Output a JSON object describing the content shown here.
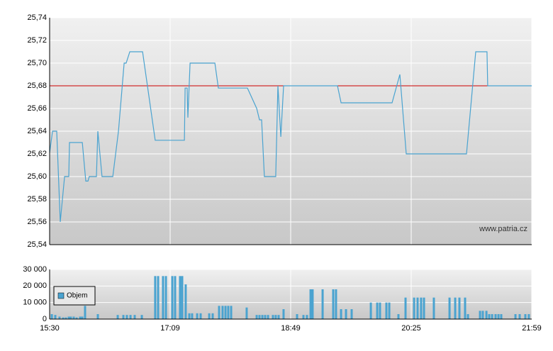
{
  "chart_data": [
    {
      "type": "line",
      "annotation": "www.patria.cz",
      "xlim": [
        0,
        4
      ],
      "ylim": [
        25.54,
        25.74
      ],
      "yticks": [
        {
          "value": 25.54,
          "label": "25,54"
        },
        {
          "value": 25.56,
          "label": "25,56"
        },
        {
          "value": 25.58,
          "label": "25,58"
        },
        {
          "value": 25.6,
          "label": "25,60"
        },
        {
          "value": 25.62,
          "label": "25,62"
        },
        {
          "value": 25.64,
          "label": "25,64"
        },
        {
          "value": 25.66,
          "label": "25,66"
        },
        {
          "value": 25.68,
          "label": "25,68"
        },
        {
          "value": 25.7,
          "label": "25,70"
        },
        {
          "value": 25.72,
          "label": "25,72"
        },
        {
          "value": 25.74,
          "label": "25,74"
        }
      ],
      "grid": true,
      "reference_line": {
        "value": 25.68,
        "color": "#cc0000"
      },
      "series": [
        {
          "color": "#4aa3d0",
          "x": [
            0,
            0.024,
            0.059,
            0.088,
            0.124,
            0.159,
            0.165,
            0.271,
            0.3,
            0.318,
            0.329,
            0.388,
            0.4,
            0.435,
            0.524,
            0.571,
            0.618,
            0.635,
            0.665,
            0.771,
            0.876,
            1.118,
            1.124,
            1.141,
            1.147,
            1.165,
            1.371,
            1.4,
            1.641,
            1.718,
            1.741,
            1.759,
            1.782,
            1.876,
            1.894,
            1.918,
            1.941,
            2.388,
            2.418,
            2.841,
            2.906,
            2.959,
            3.459,
            3.535,
            3.629,
            3.635,
            4
          ],
          "values": [
            25.621,
            25.64,
            25.64,
            25.56,
            25.6,
            25.6,
            25.63,
            25.63,
            25.596,
            25.596,
            25.6,
            25.6,
            25.64,
            25.6,
            25.6,
            25.64,
            25.7,
            25.7,
            25.71,
            25.71,
            25.632,
            25.632,
            25.678,
            25.678,
            25.652,
            25.7,
            25.7,
            25.678,
            25.678,
            25.66,
            25.65,
            25.65,
            25.6,
            25.6,
            25.68,
            25.635,
            25.68,
            25.68,
            25.665,
            25.665,
            25.69,
            25.62,
            25.62,
            25.71,
            25.71,
            25.68,
            25.68
          ]
        }
      ]
    },
    {
      "type": "bar",
      "xlim": [
        0,
        4
      ],
      "xticks": [
        {
          "value": 0,
          "label": "15:30"
        },
        {
          "value": 1,
          "label": "17:09"
        },
        {
          "value": 2,
          "label": "18:49"
        },
        {
          "value": 3,
          "label": "20:25"
        },
        {
          "value": 4,
          "label": "21:59"
        }
      ],
      "ylim": [
        0,
        30000
      ],
      "yticks": [
        0,
        {
          "value": 10000,
          "label": "10 000"
        },
        {
          "value": 20000,
          "label": "20 000"
        },
        {
          "value": 30000,
          "label": "30 000"
        }
      ],
      "grid": true,
      "legend": "left",
      "series": [
        {
          "name": "Objem",
          "color": "#4aa3d0",
          "x": [
            0.018,
            0.047,
            0.082,
            0.112,
            0.135,
            0.159,
            0.176,
            0.2,
            0.224,
            0.253,
            0.271,
            0.294,
            0.4,
            0.565,
            0.612,
            0.641,
            0.671,
            0.706,
            0.765,
            0.876,
            0.9,
            0.941,
            0.965,
            1.018,
            1.041,
            1.082,
            1.1,
            1.129,
            1.159,
            1.182,
            1.224,
            1.253,
            1.324,
            1.353,
            1.406,
            1.435,
            1.459,
            1.482,
            1.506,
            1.635,
            1.718,
            1.741,
            1.765,
            1.788,
            1.812,
            1.853,
            1.876,
            1.9,
            1.941,
            2.053,
            2.106,
            2.135,
            2.165,
            2.182,
            2.265,
            2.353,
            2.376,
            2.418,
            2.459,
            2.506,
            2.665,
            2.718,
            2.741,
            2.794,
            2.818,
            2.894,
            2.953,
            3.024,
            3.053,
            3.082,
            3.106,
            3.188,
            3.318,
            3.365,
            3.4,
            3.447,
            3.471,
            3.571,
            3.594,
            3.624,
            3.647,
            3.671,
            3.7,
            3.724,
            3.747,
            3.865,
            3.9,
            3.947,
            3.976
          ],
          "values": [
            3000,
            2500,
            1500,
            1000,
            1000,
            1500,
            1500,
            1500,
            1000,
            1500,
            1500,
            8000,
            3000,
            2500,
            2500,
            2500,
            2500,
            2500,
            2500,
            26000,
            26000,
            26000,
            26000,
            26000,
            26000,
            26000,
            26000,
            21000,
            3500,
            3500,
            3500,
            3500,
            3500,
            3500,
            8000,
            8000,
            8000,
            8000,
            8000,
            7000,
            2500,
            2500,
            2500,
            2500,
            2500,
            2500,
            2500,
            2500,
            6000,
            3000,
            2500,
            2500,
            18000,
            18000,
            18000,
            18000,
            18000,
            6000,
            6000,
            6000,
            10000,
            10000,
            10000,
            10000,
            10000,
            3000,
            13000,
            13000,
            13000,
            13000,
            13000,
            13000,
            13000,
            13000,
            13000,
            13000,
            3000,
            5000,
            5000,
            5000,
            3000,
            3000,
            3000,
            3000,
            3000,
            3000,
            3000,
            3000,
            3000
          ]
        }
      ]
    }
  ]
}
